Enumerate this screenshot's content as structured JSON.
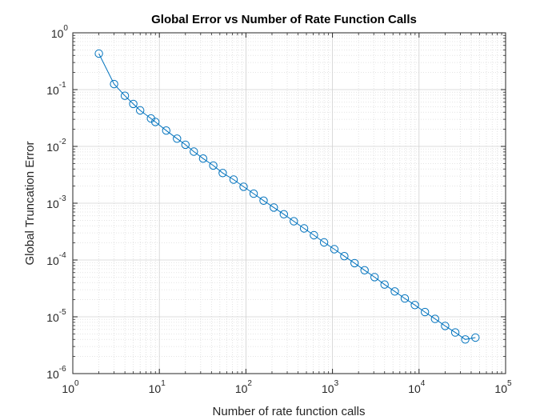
{
  "chart_data": {
    "type": "line",
    "title": "Global Error vs Number of Rate Function Calls",
    "xlabel": "Number of rate function calls",
    "ylabel": "Global Truncation Error",
    "xscale": "log",
    "yscale": "log",
    "xlim": [
      1,
      100000
    ],
    "ylim": [
      1e-06,
      1
    ],
    "grid": true,
    "minor_grid": true,
    "marker": "open-circle",
    "x_ticks": [
      {
        "base": "10",
        "exp": "0"
      },
      {
        "base": "10",
        "exp": "1"
      },
      {
        "base": "10",
        "exp": "2"
      },
      {
        "base": "10",
        "exp": "3"
      },
      {
        "base": "10",
        "exp": "4"
      },
      {
        "base": "10",
        "exp": "5"
      }
    ],
    "y_ticks": [
      {
        "base": "10",
        "exp": "-6"
      },
      {
        "base": "10",
        "exp": "-5"
      },
      {
        "base": "10",
        "exp": "-4"
      },
      {
        "base": "10",
        "exp": "-3"
      },
      {
        "base": "10",
        "exp": "-2"
      },
      {
        "base": "10",
        "exp": "-1"
      },
      {
        "base": "10",
        "exp": "0"
      }
    ],
    "series": [
      {
        "color": "#0072BD",
        "x": [
          2,
          3,
          4,
          5,
          6,
          8,
          9,
          12,
          16,
          20,
          25,
          32,
          42,
          54,
          72,
          94,
          123,
          160,
          210,
          274,
          358,
          470,
          610,
          800,
          1050,
          1370,
          1800,
          2350,
          3060,
          4000,
          5250,
          6850,
          8950,
          11700,
          15300,
          20000,
          26200,
          34200,
          44800
        ],
        "y": [
          0.43,
          0.125,
          0.078,
          0.056,
          0.043,
          0.031,
          0.027,
          0.019,
          0.0137,
          0.0107,
          0.0081,
          0.0061,
          0.0046,
          0.0034,
          0.0026,
          0.00195,
          0.00147,
          0.00111,
          0.00084,
          0.00064,
          0.00048,
          0.00036,
          0.000273,
          0.000204,
          0.000155,
          0.000117,
          8.8e-05,
          6.6e-05,
          5e-05,
          3.7e-05,
          2.8e-05,
          2.1e-05,
          1.61e-05,
          1.21e-05,
          9.2e-06,
          6.9e-06,
          5.3e-06,
          4e-06,
          4.3e-06
        ]
      }
    ]
  }
}
